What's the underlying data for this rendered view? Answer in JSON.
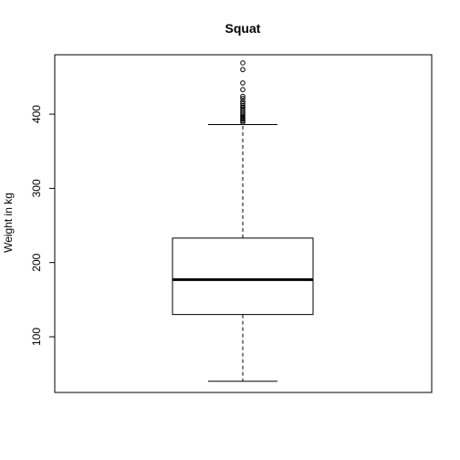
{
  "chart_data": {
    "type": "box",
    "title": "Squat",
    "xlabel": "",
    "ylabel": "Weight in kg",
    "ylim": [
      25,
      480
    ],
    "yticks": [
      100,
      200,
      300,
      400
    ],
    "series": [
      {
        "whisker_low": 40,
        "q1": 130,
        "median": 177,
        "q3": 233,
        "whisker_high": 386,
        "outliers": [
          389,
          391,
          393,
          395,
          397,
          399,
          401,
          404,
          407,
          409,
          411,
          414,
          417,
          421,
          424,
          433,
          442,
          460,
          469
        ]
      }
    ],
    "grid": false,
    "legend": "none"
  }
}
